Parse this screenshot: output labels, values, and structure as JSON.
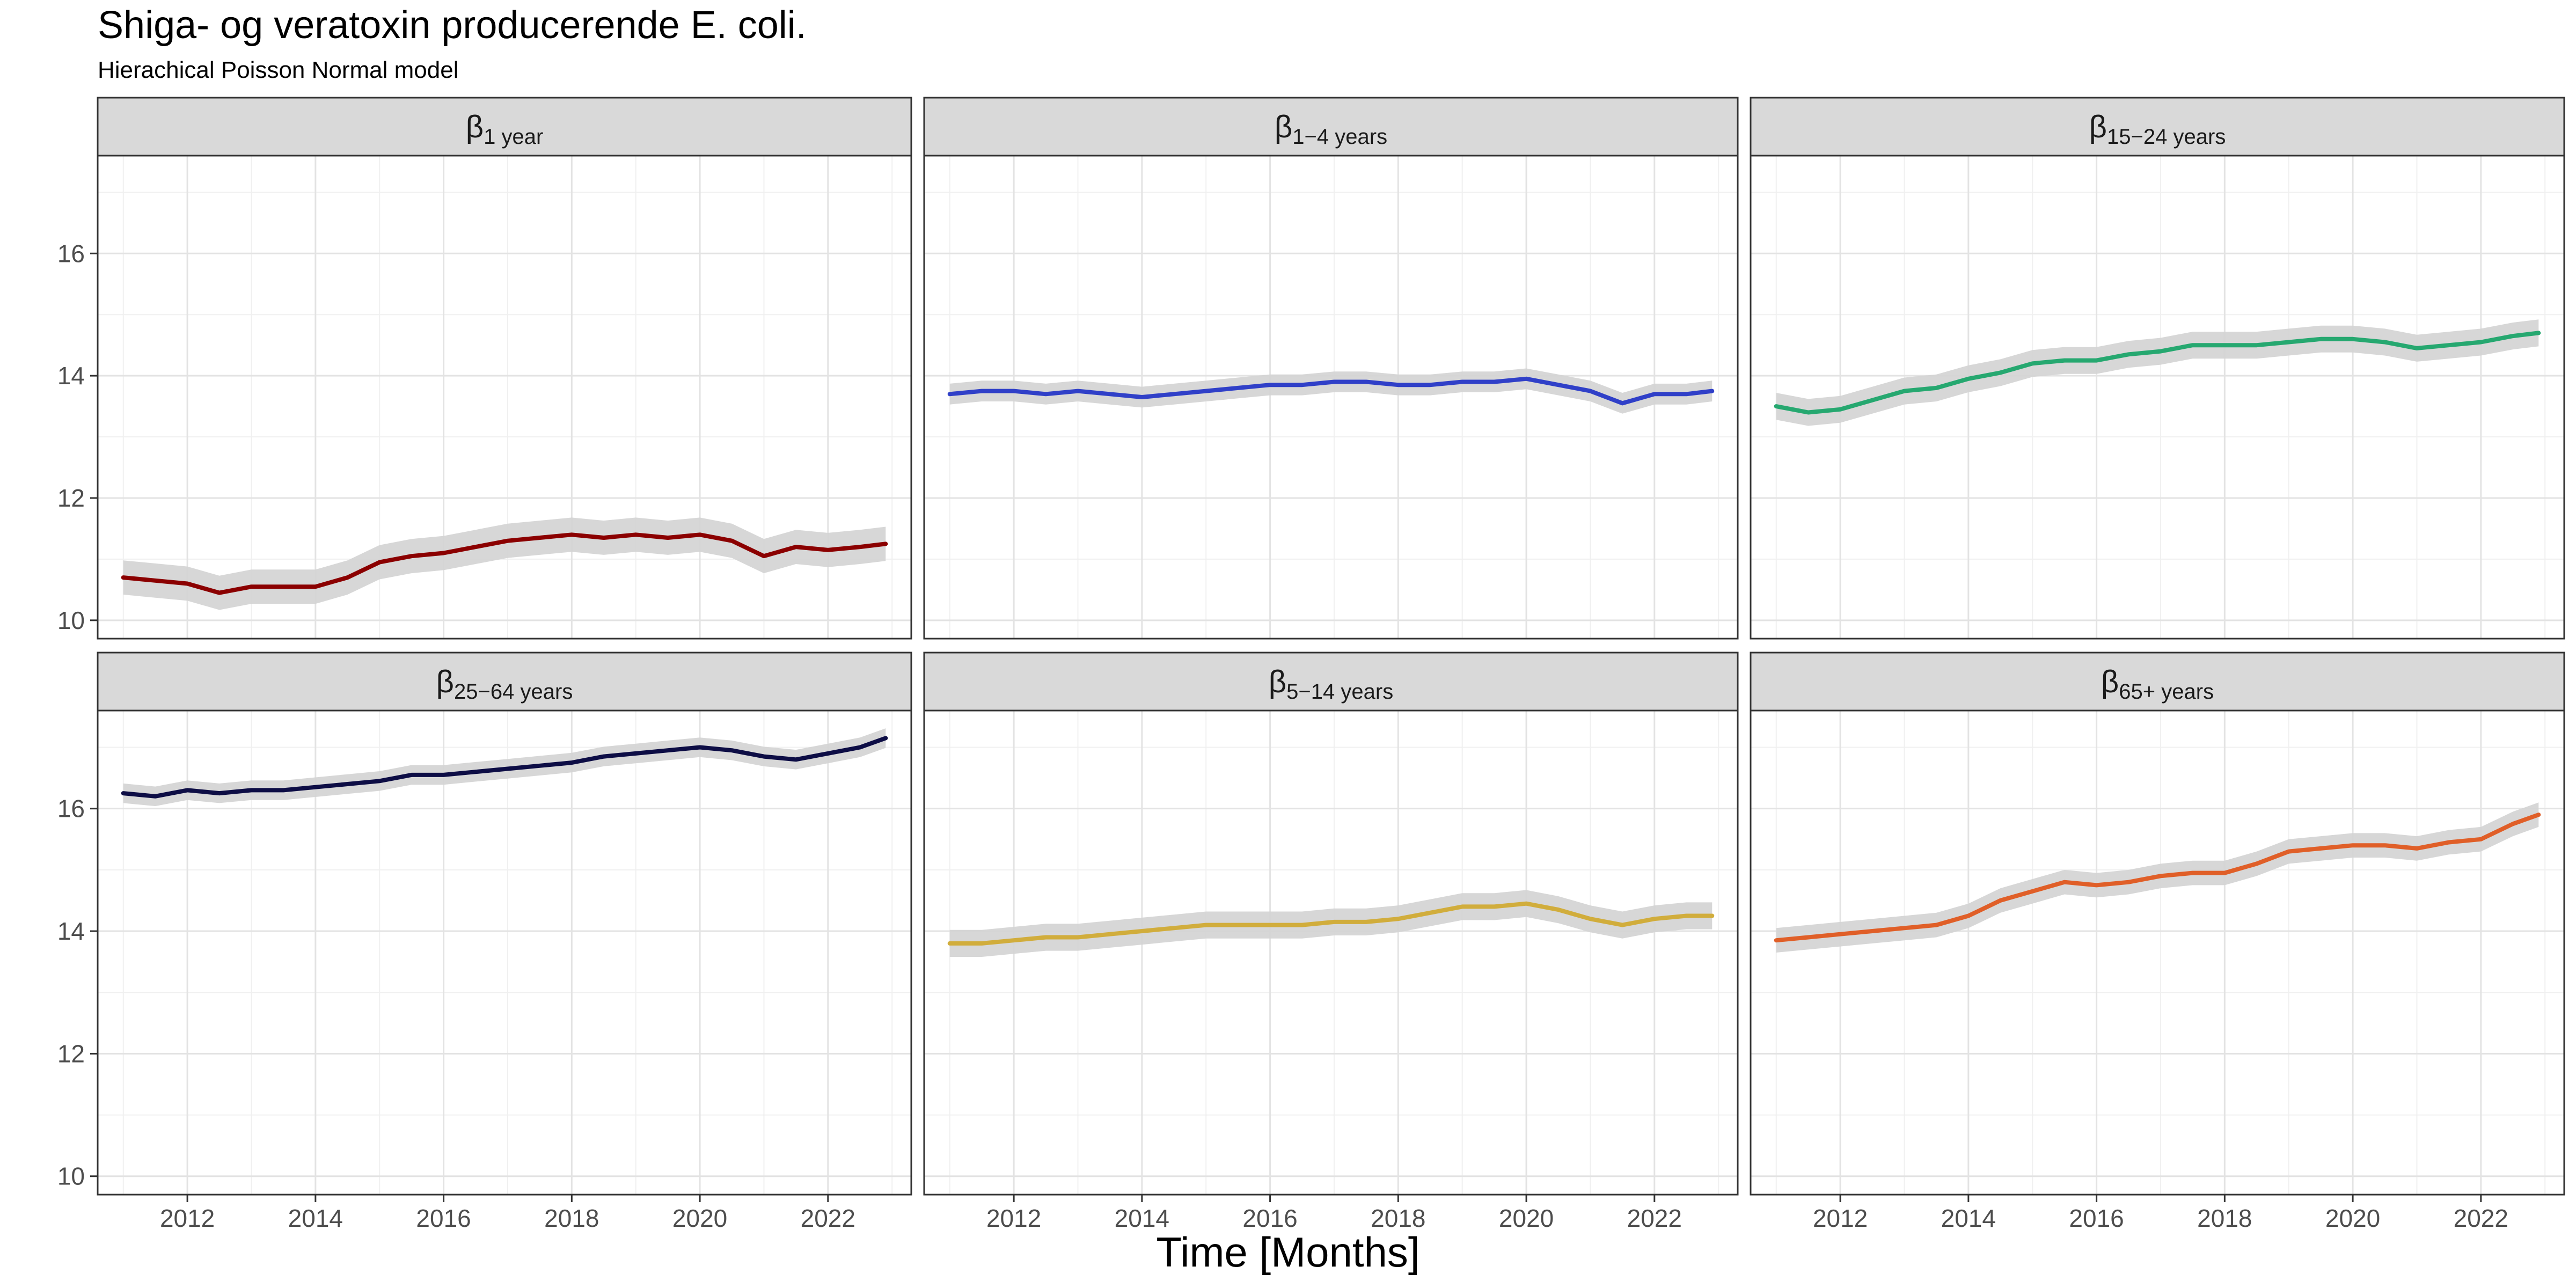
{
  "title": "Shiga- og veratoxin producerende E. coli.",
  "subtitle": "Hierachical Poisson Normal model",
  "chart_data": {
    "type": "line",
    "title": "Shiga- og veratoxin producerende E. coli.",
    "subtitle": "Hierachical Poisson Normal model",
    "xlabel": "Time [Months]",
    "ylabel": "",
    "xlim": [
      2010.6,
      2023.3
    ],
    "ylim": [
      9.7,
      17.6
    ],
    "x_ticks": [
      2012,
      2014,
      2016,
      2018,
      2020,
      2022
    ],
    "y_ticks": [
      10,
      12,
      14,
      16
    ],
    "grid": true,
    "legend": "none",
    "ribbon_color": "#d3d3d3",
    "x": [
      2011.0,
      2011.5,
      2012.0,
      2012.5,
      2013.0,
      2013.5,
      2014.0,
      2014.5,
      2015.0,
      2015.5,
      2016.0,
      2016.5,
      2017.0,
      2017.5,
      2018.0,
      2018.5,
      2019.0,
      2019.5,
      2020.0,
      2020.5,
      2021.0,
      2021.5,
      2022.0,
      2022.5,
      2022.9
    ],
    "panels": [
      {
        "symbol": "β",
        "subscript": "1 year",
        "color": "#8b0000",
        "values": [
          10.7,
          10.65,
          10.6,
          10.45,
          10.55,
          10.55,
          10.55,
          10.7,
          10.95,
          11.05,
          11.1,
          11.2,
          11.3,
          11.35,
          11.4,
          11.35,
          11.4,
          11.35,
          11.4,
          11.3,
          11.05,
          11.2,
          11.15,
          11.2,
          11.25
        ],
        "ribbon": 0.28
      },
      {
        "symbol": "β",
        "subscript": "1−4 years",
        "color": "#3040c8",
        "values": [
          13.7,
          13.75,
          13.75,
          13.7,
          13.75,
          13.7,
          13.65,
          13.7,
          13.75,
          13.8,
          13.85,
          13.85,
          13.9,
          13.9,
          13.85,
          13.85,
          13.9,
          13.9,
          13.95,
          13.85,
          13.75,
          13.55,
          13.7,
          13.7,
          13.75
        ],
        "ribbon": 0.17
      },
      {
        "symbol": "β",
        "subscript": "15−24 years",
        "color": "#26a870",
        "values": [
          13.5,
          13.4,
          13.45,
          13.6,
          13.75,
          13.8,
          13.95,
          14.05,
          14.2,
          14.25,
          14.25,
          14.35,
          14.4,
          14.5,
          14.5,
          14.5,
          14.55,
          14.6,
          14.6,
          14.55,
          14.45,
          14.5,
          14.55,
          14.65,
          14.7
        ],
        "ribbon": 0.22
      },
      {
        "symbol": "β",
        "subscript": "25−64 years",
        "color": "#0d0d45",
        "values": [
          16.25,
          16.2,
          16.3,
          16.25,
          16.3,
          16.3,
          16.35,
          16.4,
          16.45,
          16.55,
          16.55,
          16.6,
          16.65,
          16.7,
          16.75,
          16.85,
          16.9,
          16.95,
          17.0,
          16.95,
          16.85,
          16.8,
          16.9,
          17.0,
          17.15
        ],
        "ribbon": 0.16
      },
      {
        "symbol": "β",
        "subscript": "5−14 years",
        "color": "#d1ad3c",
        "values": [
          13.8,
          13.8,
          13.85,
          13.9,
          13.9,
          13.95,
          14.0,
          14.05,
          14.1,
          14.1,
          14.1,
          14.1,
          14.15,
          14.15,
          14.2,
          14.3,
          14.4,
          14.4,
          14.45,
          14.35,
          14.2,
          14.1,
          14.2,
          14.25,
          14.25
        ],
        "ribbon": 0.22
      },
      {
        "symbol": "β",
        "subscript": "65+ years",
        "color": "#e05f28",
        "values": [
          13.85,
          13.9,
          13.95,
          14.0,
          14.05,
          14.1,
          14.25,
          14.5,
          14.65,
          14.8,
          14.75,
          14.8,
          14.9,
          14.95,
          14.95,
          15.1,
          15.3,
          15.35,
          15.4,
          15.4,
          15.35,
          15.45,
          15.5,
          15.75,
          15.9
        ],
        "ribbon": 0.2
      }
    ]
  }
}
